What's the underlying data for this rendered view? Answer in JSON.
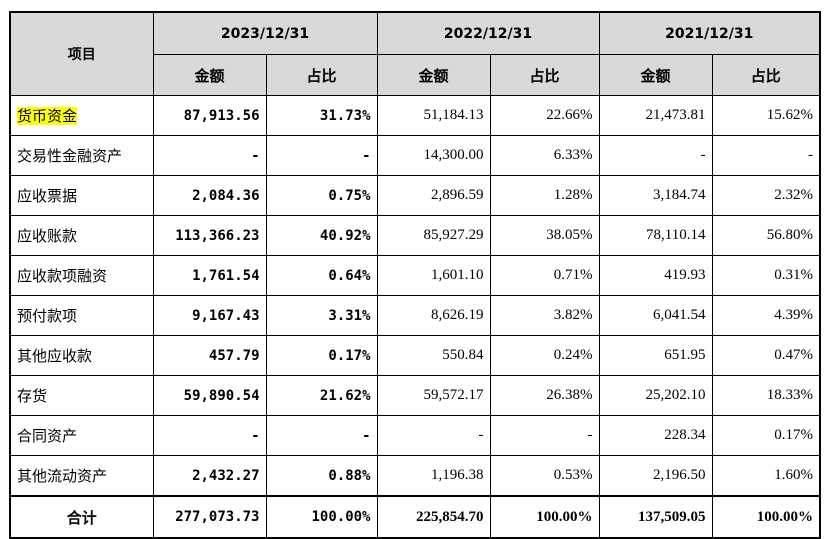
{
  "table": {
    "header": {
      "item": "项目",
      "periods": [
        "2023/12/31",
        "2022/12/31",
        "2021/12/31"
      ],
      "amount": "金额",
      "ratio": "占比"
    },
    "rows": [
      {
        "item": "货币资金",
        "v2023": "87,913.56",
        "r2023": "31.73%",
        "v2022": "51,184.13",
        "r2022": "22.66%",
        "v2021": "21,473.81",
        "r2021": "15.62%"
      },
      {
        "item": "交易性金融资产",
        "v2023": "-",
        "r2023": "-",
        "v2022": "14,300.00",
        "r2022": "6.33%",
        "v2021": "-",
        "r2021": "-"
      },
      {
        "item": "应收票据",
        "v2023": "2,084.36",
        "r2023": "0.75%",
        "v2022": "2,896.59",
        "r2022": "1.28%",
        "v2021": "3,184.74",
        "r2021": "2.32%"
      },
      {
        "item": "应收账款",
        "v2023": "113,366.23",
        "r2023": "40.92%",
        "v2022": "85,927.29",
        "r2022": "38.05%",
        "v2021": "78,110.14",
        "r2021": "56.80%"
      },
      {
        "item": "应收款项融资",
        "v2023": "1,761.54",
        "r2023": "0.64%",
        "v2022": "1,601.10",
        "r2022": "0.71%",
        "v2021": "419.93",
        "r2021": "0.31%"
      },
      {
        "item": "预付款项",
        "v2023": "9,167.43",
        "r2023": "3.31%",
        "v2022": "8,626.19",
        "r2022": "3.82%",
        "v2021": "6,041.54",
        "r2021": "4.39%"
      },
      {
        "item": "其他应收款",
        "v2023": "457.79",
        "r2023": "0.17%",
        "v2022": "550.84",
        "r2022": "0.24%",
        "v2021": "651.95",
        "r2021": "0.47%"
      },
      {
        "item": "存货",
        "v2023": "59,890.54",
        "r2023": "21.62%",
        "v2022": "59,572.17",
        "r2022": "26.38%",
        "v2021": "25,202.10",
        "r2021": "18.33%"
      },
      {
        "item": "合同资产",
        "v2023": "-",
        "r2023": "-",
        "v2022": "-",
        "r2022": "-",
        "v2021": "228.34",
        "r2021": "0.17%"
      },
      {
        "item": "其他流动资产",
        "v2023": "2,432.27",
        "r2023": "0.88%",
        "v2022": "1,196.38",
        "r2022": "0.53%",
        "v2021": "2,196.50",
        "r2021": "1.60%"
      }
    ],
    "total": {
      "item": "合计",
      "v2023": "277,073.73",
      "r2023": "100.00%",
      "v2022": "225,854.70",
      "r2022": "100.00%",
      "v2021": "137,509.05",
      "r2021": "100.00%"
    }
  },
  "colors": {
    "header_bg": "#d9d9d9",
    "highlight": "#ffff00",
    "border": "#000000"
  }
}
